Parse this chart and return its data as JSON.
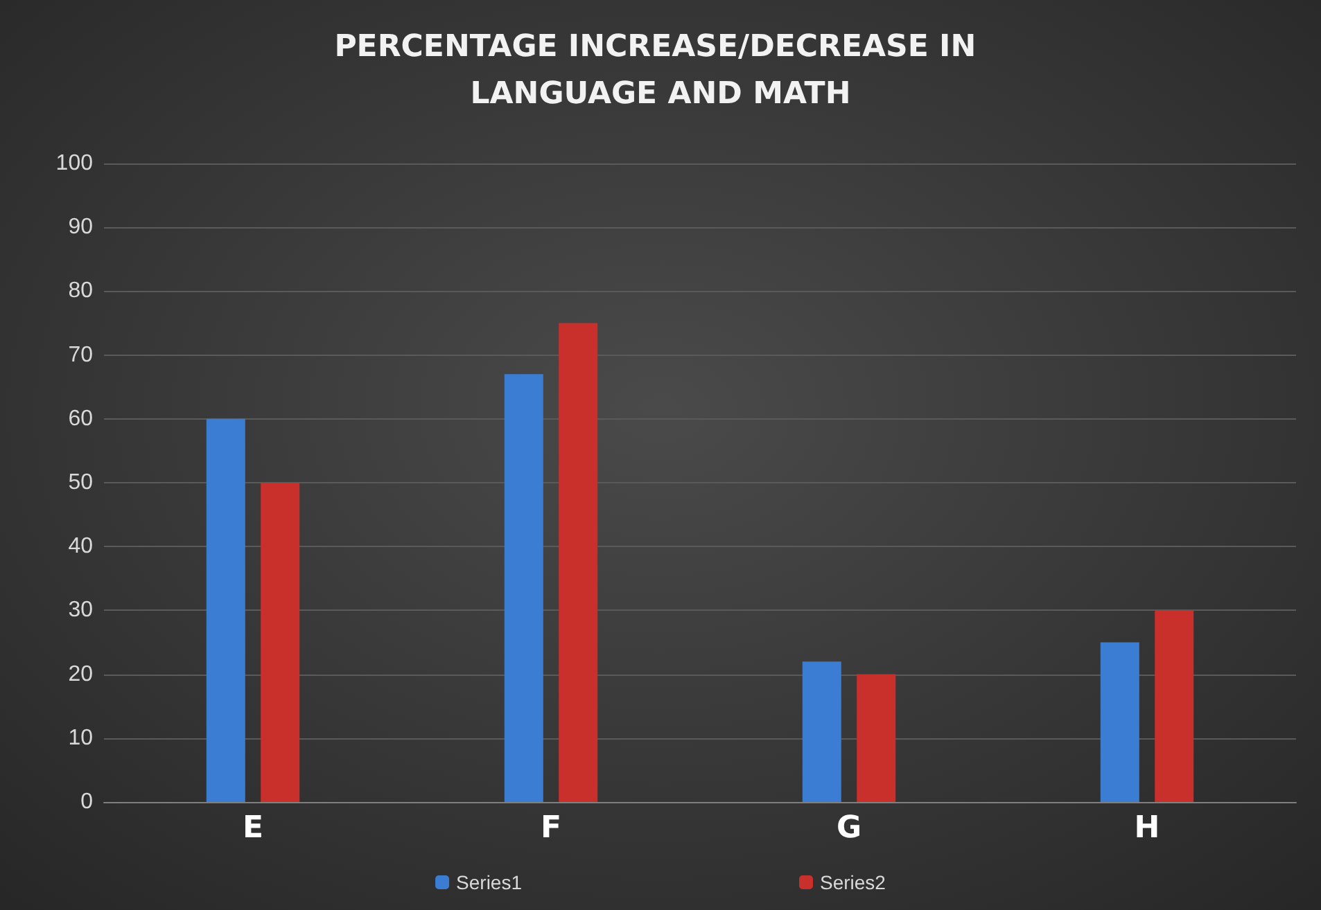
{
  "chart_data": {
    "type": "bar",
    "title": "PERCENTAGE INCREASE/DECREASE IN LANGUAGE AND MATH",
    "categories": [
      "E",
      "F",
      "G",
      "H"
    ],
    "series": [
      {
        "name": "Series1",
        "color": "#3b7dd3",
        "values": [
          60,
          67,
          22,
          25
        ]
      },
      {
        "name": "Series2",
        "color": "#c9302c",
        "values": [
          50,
          75,
          20,
          30
        ]
      }
    ],
    "ylim": [
      0,
      100
    ],
    "yticks": [
      0,
      10,
      20,
      30,
      40,
      50,
      60,
      70,
      80,
      90,
      100
    ],
    "grid": "y",
    "legend": "bottom"
  }
}
